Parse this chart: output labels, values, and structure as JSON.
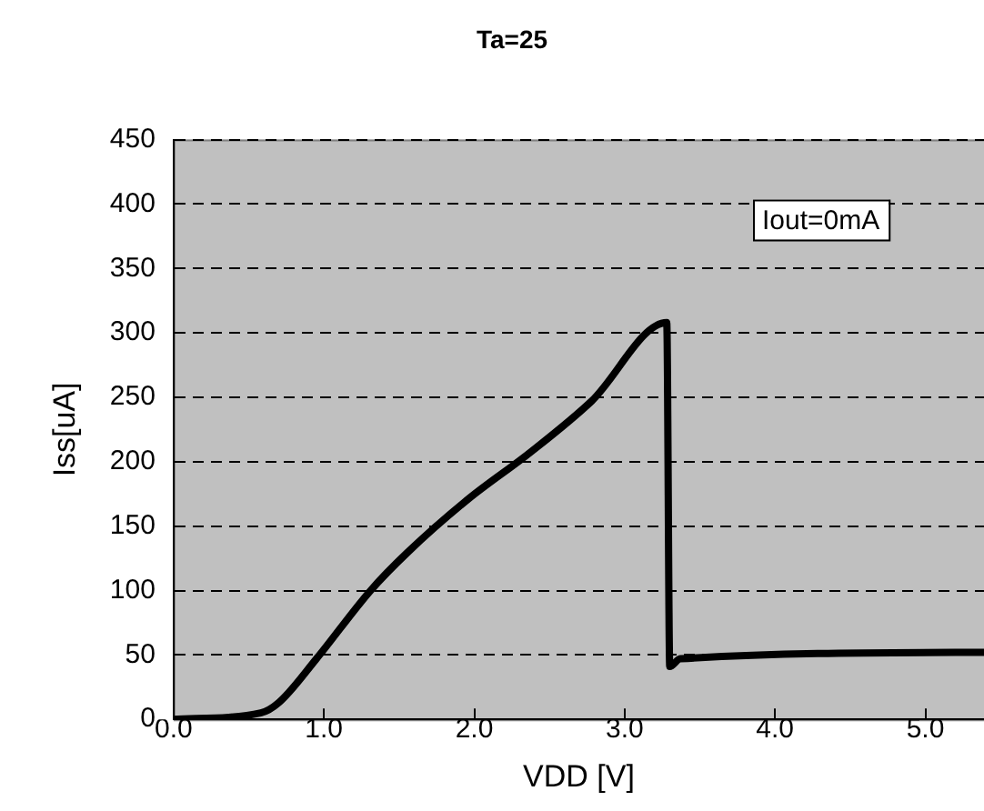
{
  "chart_data": {
    "type": "line",
    "title": "Ta=25",
    "xlabel": "VDD [V]",
    "ylabel": "Iss[uA]",
    "annotations": [
      "Iout=0mA"
    ],
    "series": [
      {
        "color": "#000000",
        "x": [
          0,
          0.58,
          0.7,
          0.95,
          1.31,
          1.56,
          1.96,
          2.37,
          2.78,
          3.28,
          3.3,
          3.37,
          5.39
        ],
        "values": [
          0,
          5,
          13,
          47,
          100,
          130,
          171,
          207,
          247,
          308,
          41,
          47,
          52
        ]
      }
    ],
    "xlim": [
      0,
      5.39
    ],
    "xticks": [
      {
        "value": 0,
        "label": "0.0"
      },
      {
        "value": 1,
        "label": "1.0"
      },
      {
        "value": 2,
        "label": "2.0"
      },
      {
        "value": 3,
        "label": "3.0"
      },
      {
        "value": 4,
        "label": "4.0"
      },
      {
        "value": 5,
        "label": "5.0"
      }
    ],
    "ylim": [
      0,
      450
    ],
    "yticks": [
      0,
      50,
      100,
      150,
      200,
      250,
      300,
      350,
      400,
      450
    ],
    "grid": "y",
    "marker": "none",
    "line_style": "solid",
    "legend": false
  }
}
